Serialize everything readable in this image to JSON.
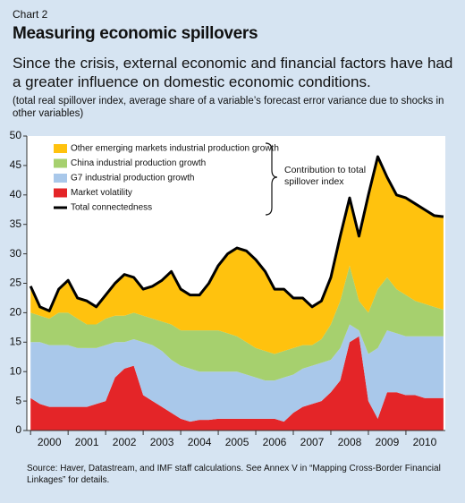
{
  "chart_data": {
    "type": "stacked_area_line",
    "label": "Chart 2",
    "title": "Measuring economic spillovers",
    "subtitle": "Since the crisis, external economic and financial factors have had a greater influence on domestic economic conditions.",
    "note": "(total real spillover index, average share of a variable’s forecast error variance due to shocks in other variables)",
    "source": "Source: Haver, Datastream, and IMF staff calculations. See Annex V in “Mapping Cross-Border Financial Linkages” for details.",
    "annotation": "Contribution to total spillover index",
    "x": [
      2000.0,
      2000.25,
      2000.5,
      2000.75,
      2001.0,
      2001.25,
      2001.5,
      2001.75,
      2002.0,
      2002.25,
      2002.5,
      2002.75,
      2003.0,
      2003.25,
      2003.5,
      2003.75,
      2004.0,
      2004.25,
      2004.5,
      2004.75,
      2005.0,
      2005.25,
      2005.5,
      2005.75,
      2006.0,
      2006.25,
      2006.5,
      2006.75,
      2007.0,
      2007.25,
      2007.5,
      2007.75,
      2008.0,
      2008.25,
      2008.5,
      2008.75,
      2009.0,
      2009.25,
      2009.5,
      2009.75,
      2010.0,
      2010.25,
      2010.5,
      2010.75,
      2011.0
    ],
    "series": [
      {
        "name": "Market volatility",
        "color": "#e42528",
        "values": [
          5.5,
          4.5,
          4,
          4,
          4,
          4,
          4,
          4.5,
          5,
          9,
          10.5,
          11,
          6,
          5,
          4,
          3,
          2,
          1.5,
          1.8,
          1.8,
          2,
          2,
          2,
          2,
          2,
          2,
          2,
          1.5,
          3,
          4,
          4.5,
          5,
          6.5,
          8.5,
          15,
          16,
          5,
          2,
          6.5,
          6.5,
          6,
          6,
          5.5,
          5.5,
          5.5
        ]
      },
      {
        "name": "G7 industrial production growth",
        "color": "#a9c8ea",
        "values": [
          9.5,
          10.5,
          10.5,
          10.5,
          10.5,
          10,
          10,
          9.5,
          9.5,
          6,
          4.5,
          4.5,
          9,
          9.5,
          9.5,
          9,
          9,
          9,
          8.2,
          8.2,
          8,
          8,
          8,
          7.5,
          7,
          6.5,
          6.5,
          7.5,
          6.5,
          6.5,
          6.5,
          6.5,
          5.5,
          5.5,
          3,
          1,
          8,
          12,
          10.5,
          10,
          10,
          10,
          10.5,
          10.5,
          10.5
        ]
      },
      {
        "name": "China industrial production growth",
        "color": "#a6d06e",
        "values": [
          5,
          4.5,
          4.5,
          5.5,
          5.5,
          5,
          4,
          4,
          4.5,
          4.5,
          4.5,
          4.5,
          4.5,
          4.5,
          5,
          6,
          6,
          6.5,
          7,
          7,
          7,
          6.5,
          6,
          5.5,
          5,
          5,
          4.5,
          4.5,
          4.5,
          4,
          3.5,
          4,
          6,
          8,
          10,
          5,
          7,
          10,
          9,
          7.5,
          7,
          6,
          5.5,
          5,
          4.5
        ]
      },
      {
        "name": "Other emerging markets industrial production growth",
        "color": "#ffc20e",
        "values": [
          4.5,
          1.5,
          1.3,
          4,
          5.5,
          3.5,
          4,
          3,
          4,
          5.5,
          7,
          6,
          4.5,
          5.5,
          7,
          9,
          7,
          6,
          6,
          8,
          11,
          13.5,
          15,
          15.5,
          15,
          13.5,
          11,
          10.5,
          8.5,
          8,
          6.5,
          6.5,
          8,
          11,
          11.5,
          11,
          20,
          22.5,
          17,
          16,
          16.5,
          16.5,
          16,
          15.5,
          15.8
        ]
      }
    ],
    "line": {
      "name": "Total connectedness",
      "color": "#000000",
      "values": [
        24.5,
        21,
        20.3,
        24,
        25.5,
        22.5,
        22,
        21,
        23,
        25,
        26.5,
        26,
        24,
        24.5,
        25.5,
        27,
        24,
        23,
        23,
        25,
        28,
        30,
        31,
        30.5,
        29,
        27,
        24,
        24,
        22.5,
        22.5,
        21,
        22,
        26,
        33,
        39.5,
        33,
        40,
        46.5,
        43,
        40,
        39.5,
        38.5,
        37.5,
        36.5,
        36.3
      ]
    },
    "legend_order": [
      3,
      2,
      1,
      0
    ],
    "xlim": [
      1999.9,
      2011.05
    ],
    "xticks": [
      2000,
      2001,
      2002,
      2003,
      2004,
      2005,
      2006,
      2007,
      2008,
      2009,
      2010
    ],
    "ylim": [
      0,
      50
    ],
    "yticks": [
      0,
      5,
      10,
      15,
      20,
      25,
      30,
      35,
      40,
      45,
      50
    ],
    "grid": false
  }
}
